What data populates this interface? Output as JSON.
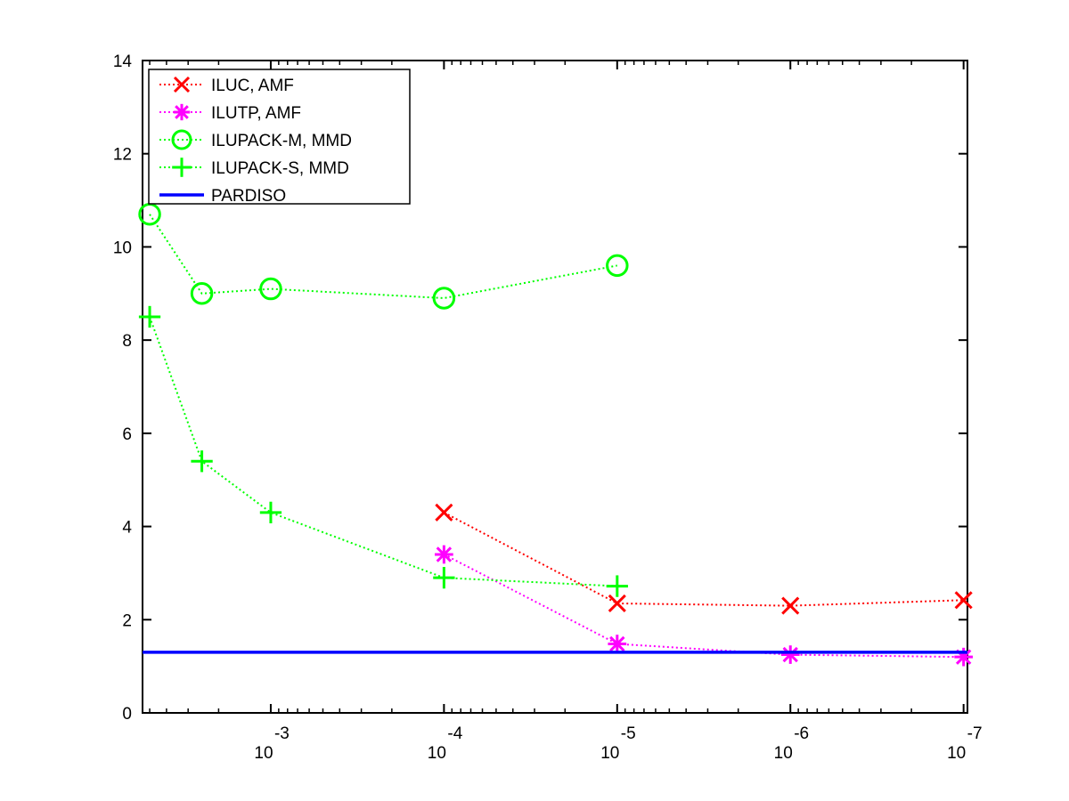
{
  "chart_data": {
    "type": "line",
    "title": "",
    "xlabel": "",
    "ylabel": "",
    "x_scale": "log-reversed",
    "xlim": [
      0.0055,
      9.5e-08
    ],
    "ylim": [
      0,
      14
    ],
    "y_ticks": [
      0,
      2,
      4,
      6,
      8,
      10,
      12,
      14
    ],
    "x_ticks": [
      {
        "value": 0.001,
        "base": "10",
        "exp": "-3"
      },
      {
        "value": 0.0001,
        "base": "10",
        "exp": "-4"
      },
      {
        "value": 1e-05,
        "base": "10",
        "exp": "-5"
      },
      {
        "value": 1e-06,
        "base": "10",
        "exp": "-6"
      },
      {
        "value": 1e-07,
        "base": "10",
        "exp": "-7"
      }
    ],
    "legend_position": "top-left",
    "grid": false,
    "series": [
      {
        "name": "ILUC, AMF",
        "color": "#ff0000",
        "marker": "x",
        "line": "dotted",
        "x": [
          0.0001,
          1e-05,
          1e-06,
          1e-07
        ],
        "y": [
          4.3,
          2.35,
          2.3,
          2.42
        ]
      },
      {
        "name": "ILUTP, AMF",
        "color": "#ff00ff",
        "marker": "asterisk",
        "line": "dotted",
        "x": [
          0.0001,
          1e-05,
          1e-06,
          1e-07
        ],
        "y": [
          3.4,
          1.48,
          1.25,
          1.2
        ]
      },
      {
        "name": "ILUPACK-M, MMD",
        "color": "#00ff00",
        "marker": "circle",
        "line": "dotted",
        "x": [
          0.005,
          0.0025,
          0.001,
          0.0001,
          1e-05
        ],
        "y": [
          10.7,
          9.0,
          9.1,
          8.9,
          9.6
        ]
      },
      {
        "name": "ILUPACK-S, MMD",
        "color": "#00ff00",
        "marker": "plus",
        "line": "dotted",
        "x": [
          0.005,
          0.0025,
          0.001,
          0.0001,
          1e-05
        ],
        "y": [
          8.5,
          5.4,
          4.3,
          2.9,
          2.72
        ]
      },
      {
        "name": "PARDISO",
        "color": "#0000ff",
        "marker": "none",
        "line": "solid",
        "x": [
          0.0055,
          9.5e-08
        ],
        "y": [
          1.3,
          1.3
        ]
      }
    ]
  }
}
